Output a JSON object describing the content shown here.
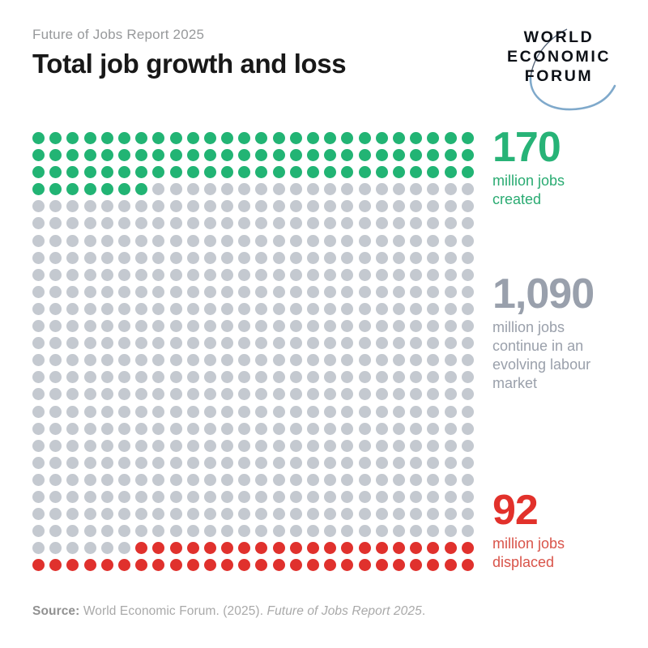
{
  "header": {
    "eyebrow": "Future of Jobs Report 2025",
    "title": "Total job growth and loss"
  },
  "logo": {
    "line1": "WORLD",
    "line2": "ECONOMIC",
    "line3": "FORUM",
    "swoosh_dark_color": "#44546a",
    "swoosh_blue_color": "#7fa9cb"
  },
  "chart_data": {
    "type": "waffle",
    "title": "Total job growth and loss",
    "grid": {
      "columns": 26,
      "rows": 26,
      "total_dots": 676
    },
    "millions_per_dot": 2,
    "fill_order": "row-major, top-left to bottom-right",
    "series": [
      {
        "name": "jobs created",
        "value_millions": 170,
        "dots": 85,
        "dot_color": "#22b474",
        "number_color": "#27b377",
        "label_color": "#2aab72",
        "big_number": "170",
        "line1": "million jobs",
        "line2": "created",
        "line3": "",
        "line4": ""
      },
      {
        "name": "jobs continue in an evolving labour market",
        "value_millions": 1090,
        "dots": 545,
        "dot_color": "#c4c9d0",
        "number_color": "#99a0ac",
        "label_color": "#9aa0ab",
        "big_number": "1,090",
        "line1": "million jobs",
        "line2": "continue in an",
        "line3": "evolving labour",
        "line4": "market"
      },
      {
        "name": "jobs displaced",
        "value_millions": 92,
        "dots": 46,
        "dot_color": "#e0312d",
        "number_color": "#e2312b",
        "label_color": "#d9544a",
        "big_number": "92",
        "line1": "million jobs",
        "line2": "displaced",
        "line3": "",
        "line4": ""
      }
    ]
  },
  "footer": {
    "source_label": "Source:",
    "source_text": " World Economic Forum. (2025). ",
    "source_italic": "Future of Jobs Report 2025",
    "source_end": "."
  }
}
